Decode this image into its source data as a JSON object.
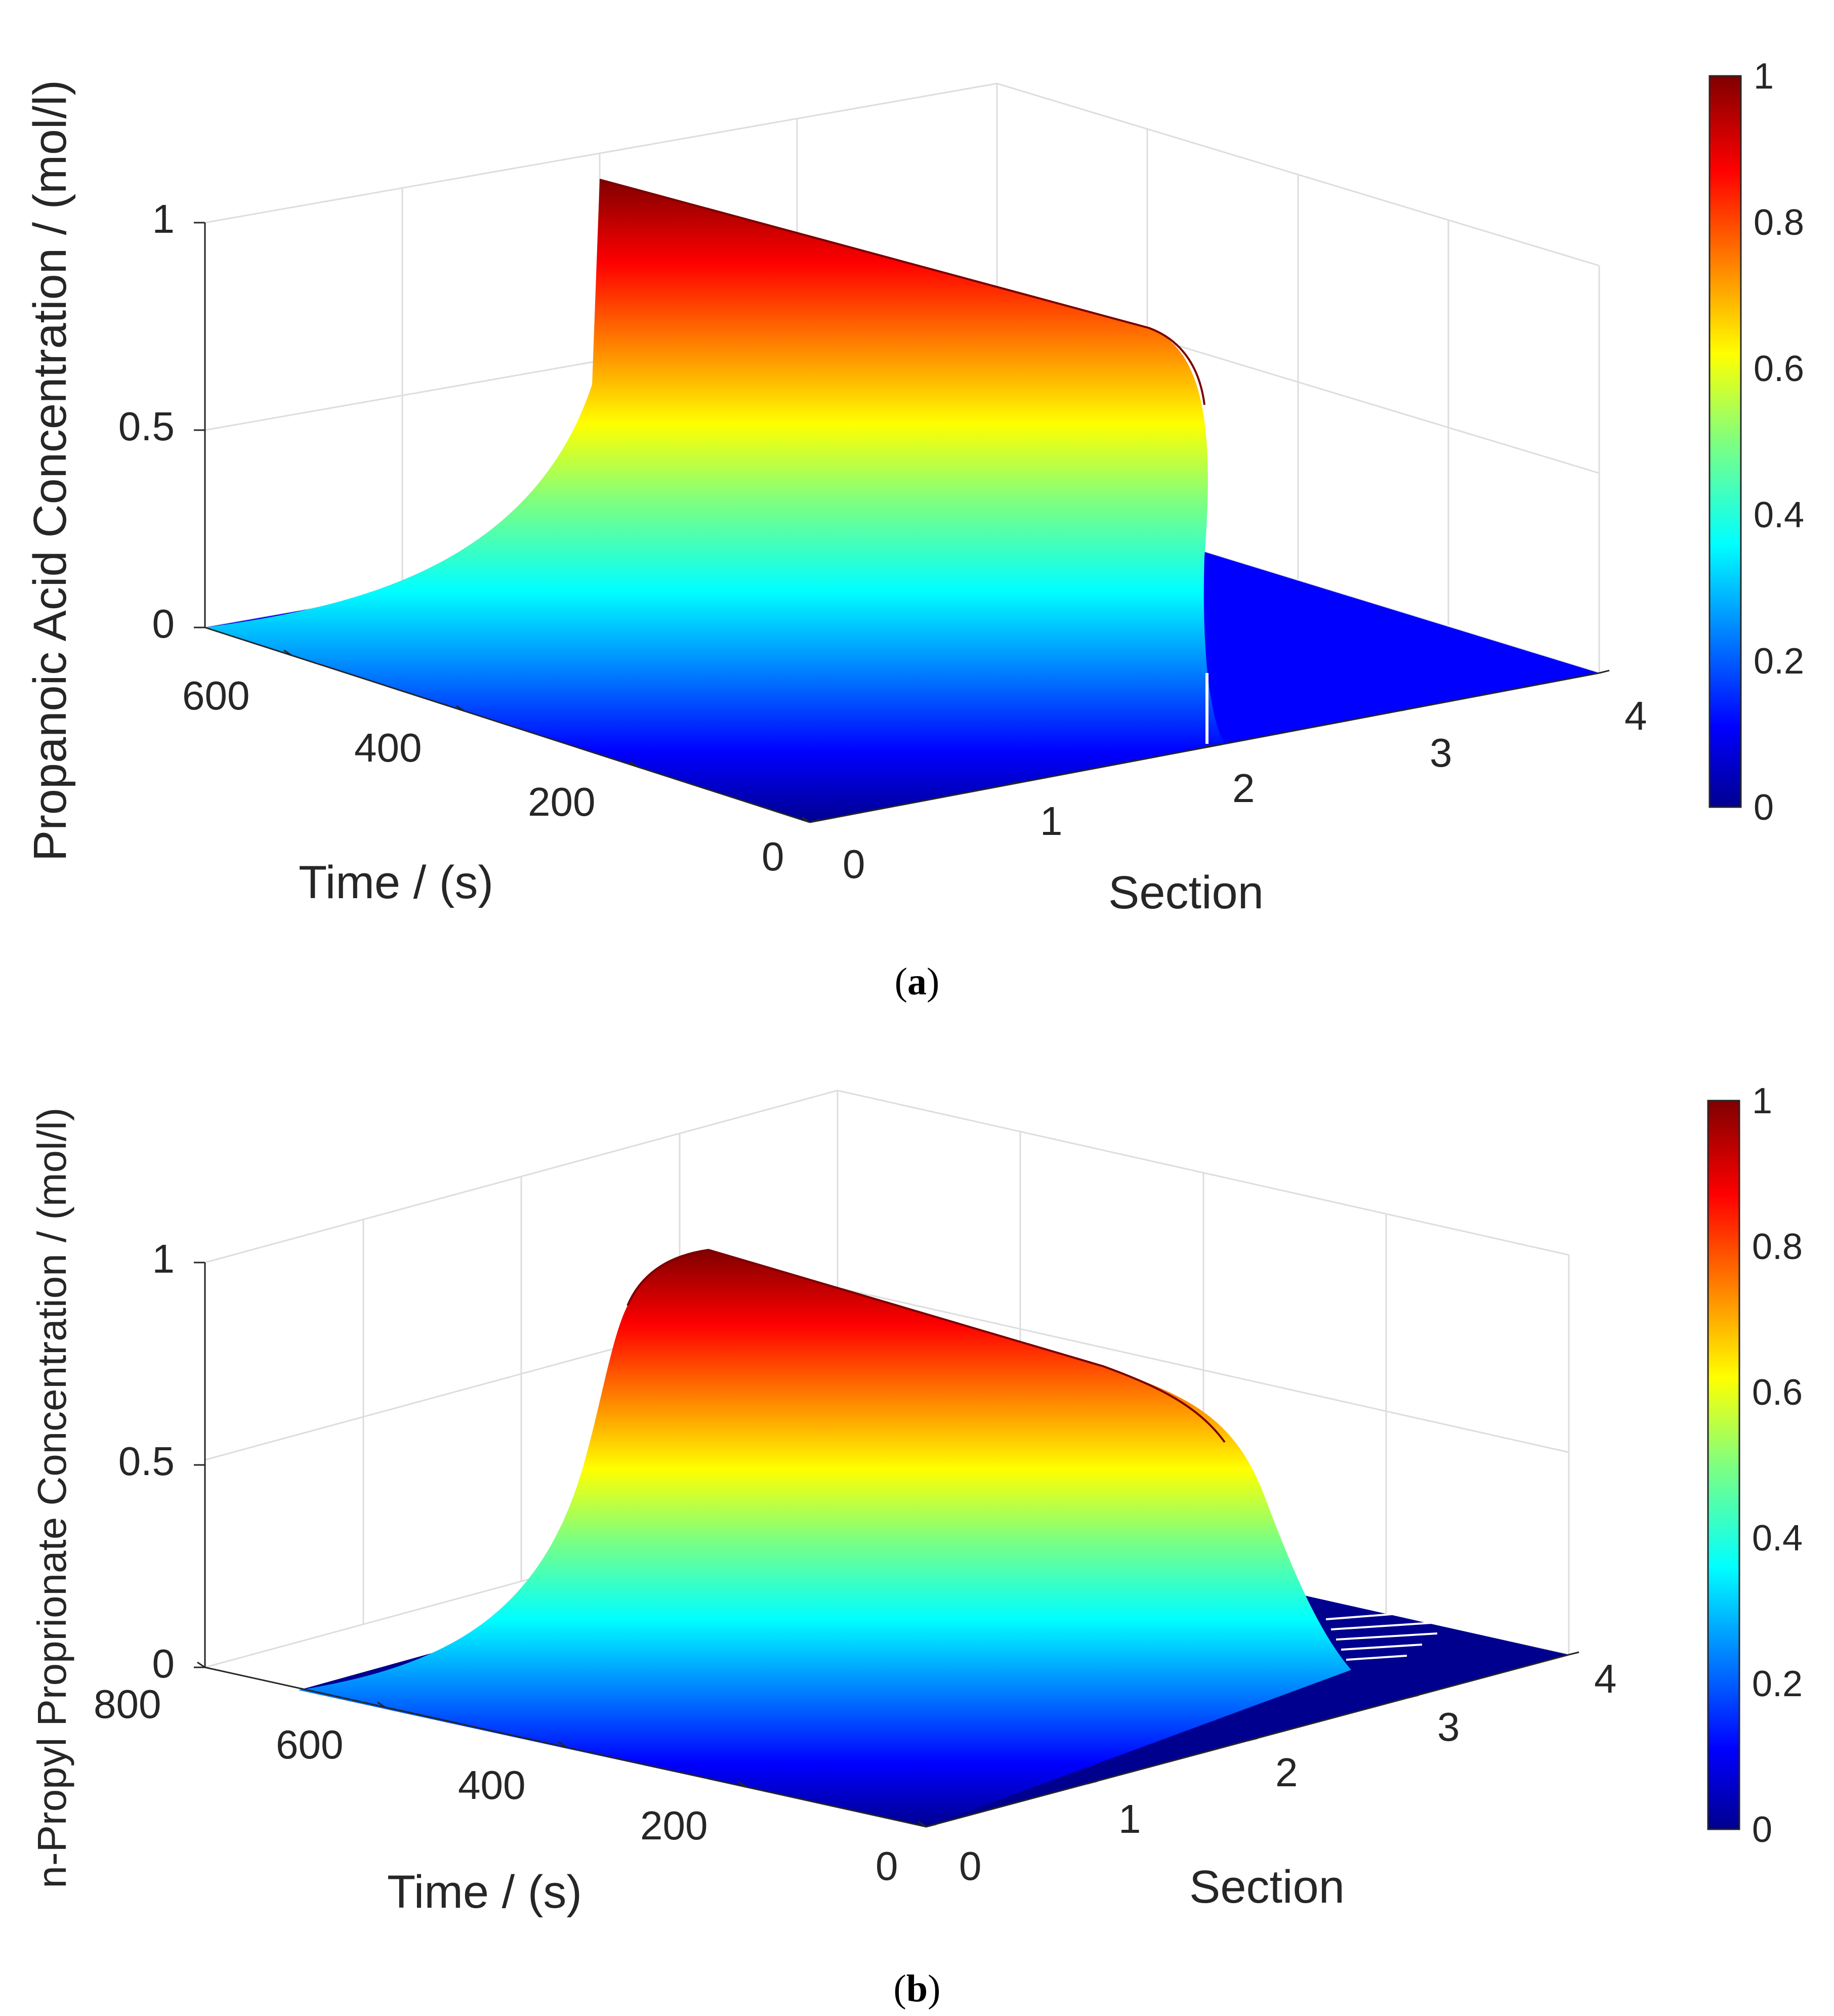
{
  "colormap": "jet",
  "colors": {
    "surface_low": "#0000ff",
    "surface_high": "#800000",
    "grid": "#dddddd",
    "axis": "#262626"
  },
  "chart_data": [
    {
      "type": "surface",
      "panel": "(a)",
      "caption_letter": "a",
      "title": "",
      "zlabel": "Propanoic Acid Concentration / (mol/l)",
      "xlabel": "Time / (s)",
      "ylabel": "Section",
      "time_ticks": [
        "0",
        "200",
        "400",
        "600"
      ],
      "section_ticks": [
        "0",
        "1",
        "2",
        "3",
        "4"
      ],
      "z_ticks": [
        "0",
        "0.5",
        "1"
      ],
      "time_range": [
        0,
        700
      ],
      "section_range": [
        0,
        4
      ],
      "z_range": [
        0,
        1
      ],
      "colorbar": {
        "range": [
          0,
          1
        ],
        "ticks": [
          "0",
          "0.2",
          "0.4",
          "0.6",
          "0.8",
          "1"
        ]
      },
      "front_profile": {
        "description": "concentration at time 0 along Section (steep front near section 2)",
        "section": [
          0,
          0.5,
          1.0,
          1.3,
          1.6,
          1.8,
          1.9,
          1.95,
          2.0,
          2.05,
          2.1,
          2.5,
          3,
          4
        ],
        "concentration": [
          1.0,
          0.97,
          0.95,
          0.94,
          0.92,
          0.89,
          0.8,
          0.55,
          0.2,
          0.06,
          0.01,
          0,
          0,
          0
        ]
      },
      "rear_profile": {
        "description": "concentration at section 0 versus time",
        "time": [
          0,
          100,
          200,
          250,
          300,
          350,
          400,
          450,
          500,
          550,
          600,
          650,
          700
        ],
        "concentration": [
          1.0,
          1.0,
          0.62,
          0.5,
          0.4,
          0.32,
          0.25,
          0.18,
          0.12,
          0.08,
          0.05,
          0.02,
          0
        ]
      }
    },
    {
      "type": "surface",
      "panel": "(b)",
      "caption_letter": "b",
      "title": "",
      "zlabel": "n-Propyl Proprionate Concentration / (mol/l)",
      "xlabel": "Time / (s)",
      "ylabel": "Section",
      "time_ticks": [
        "0",
        "200",
        "400",
        "600",
        "800"
      ],
      "section_ticks": [
        "0",
        "1",
        "2",
        "3",
        "4"
      ],
      "z_ticks": [
        "0",
        "0.5",
        "1"
      ],
      "time_range": [
        0,
        800
      ],
      "section_range": [
        0,
        4
      ],
      "z_range": [
        0,
        1
      ],
      "colorbar": {
        "range": [
          0,
          1
        ],
        "ticks": [
          "0",
          "0.2",
          "0.4",
          "0.6",
          "0.8",
          "1"
        ]
      },
      "front_profile": {
        "description": "concentration at time 0 along Section (gradual front near section 2.5-3)",
        "section": [
          0,
          0.5,
          1.0,
          1.5,
          2.0,
          2.3,
          2.6,
          2.8,
          3.0,
          3.2,
          3.4,
          4
        ],
        "concentration": [
          0.97,
          0.94,
          0.9,
          0.85,
          0.75,
          0.62,
          0.42,
          0.25,
          0.1,
          0.02,
          0,
          0
        ]
      },
      "rear_profile": {
        "description": "concentration at section 0 versus time",
        "time": [
          0,
          100,
          150,
          200,
          250,
          300,
          350,
          400,
          450,
          500,
          550,
          600,
          700,
          800
        ],
        "concentration": [
          0.97,
          0.99,
          0.9,
          0.7,
          0.55,
          0.42,
          0.3,
          0.2,
          0.12,
          0.07,
          0.03,
          0.01,
          0,
          0
        ]
      }
    }
  ]
}
